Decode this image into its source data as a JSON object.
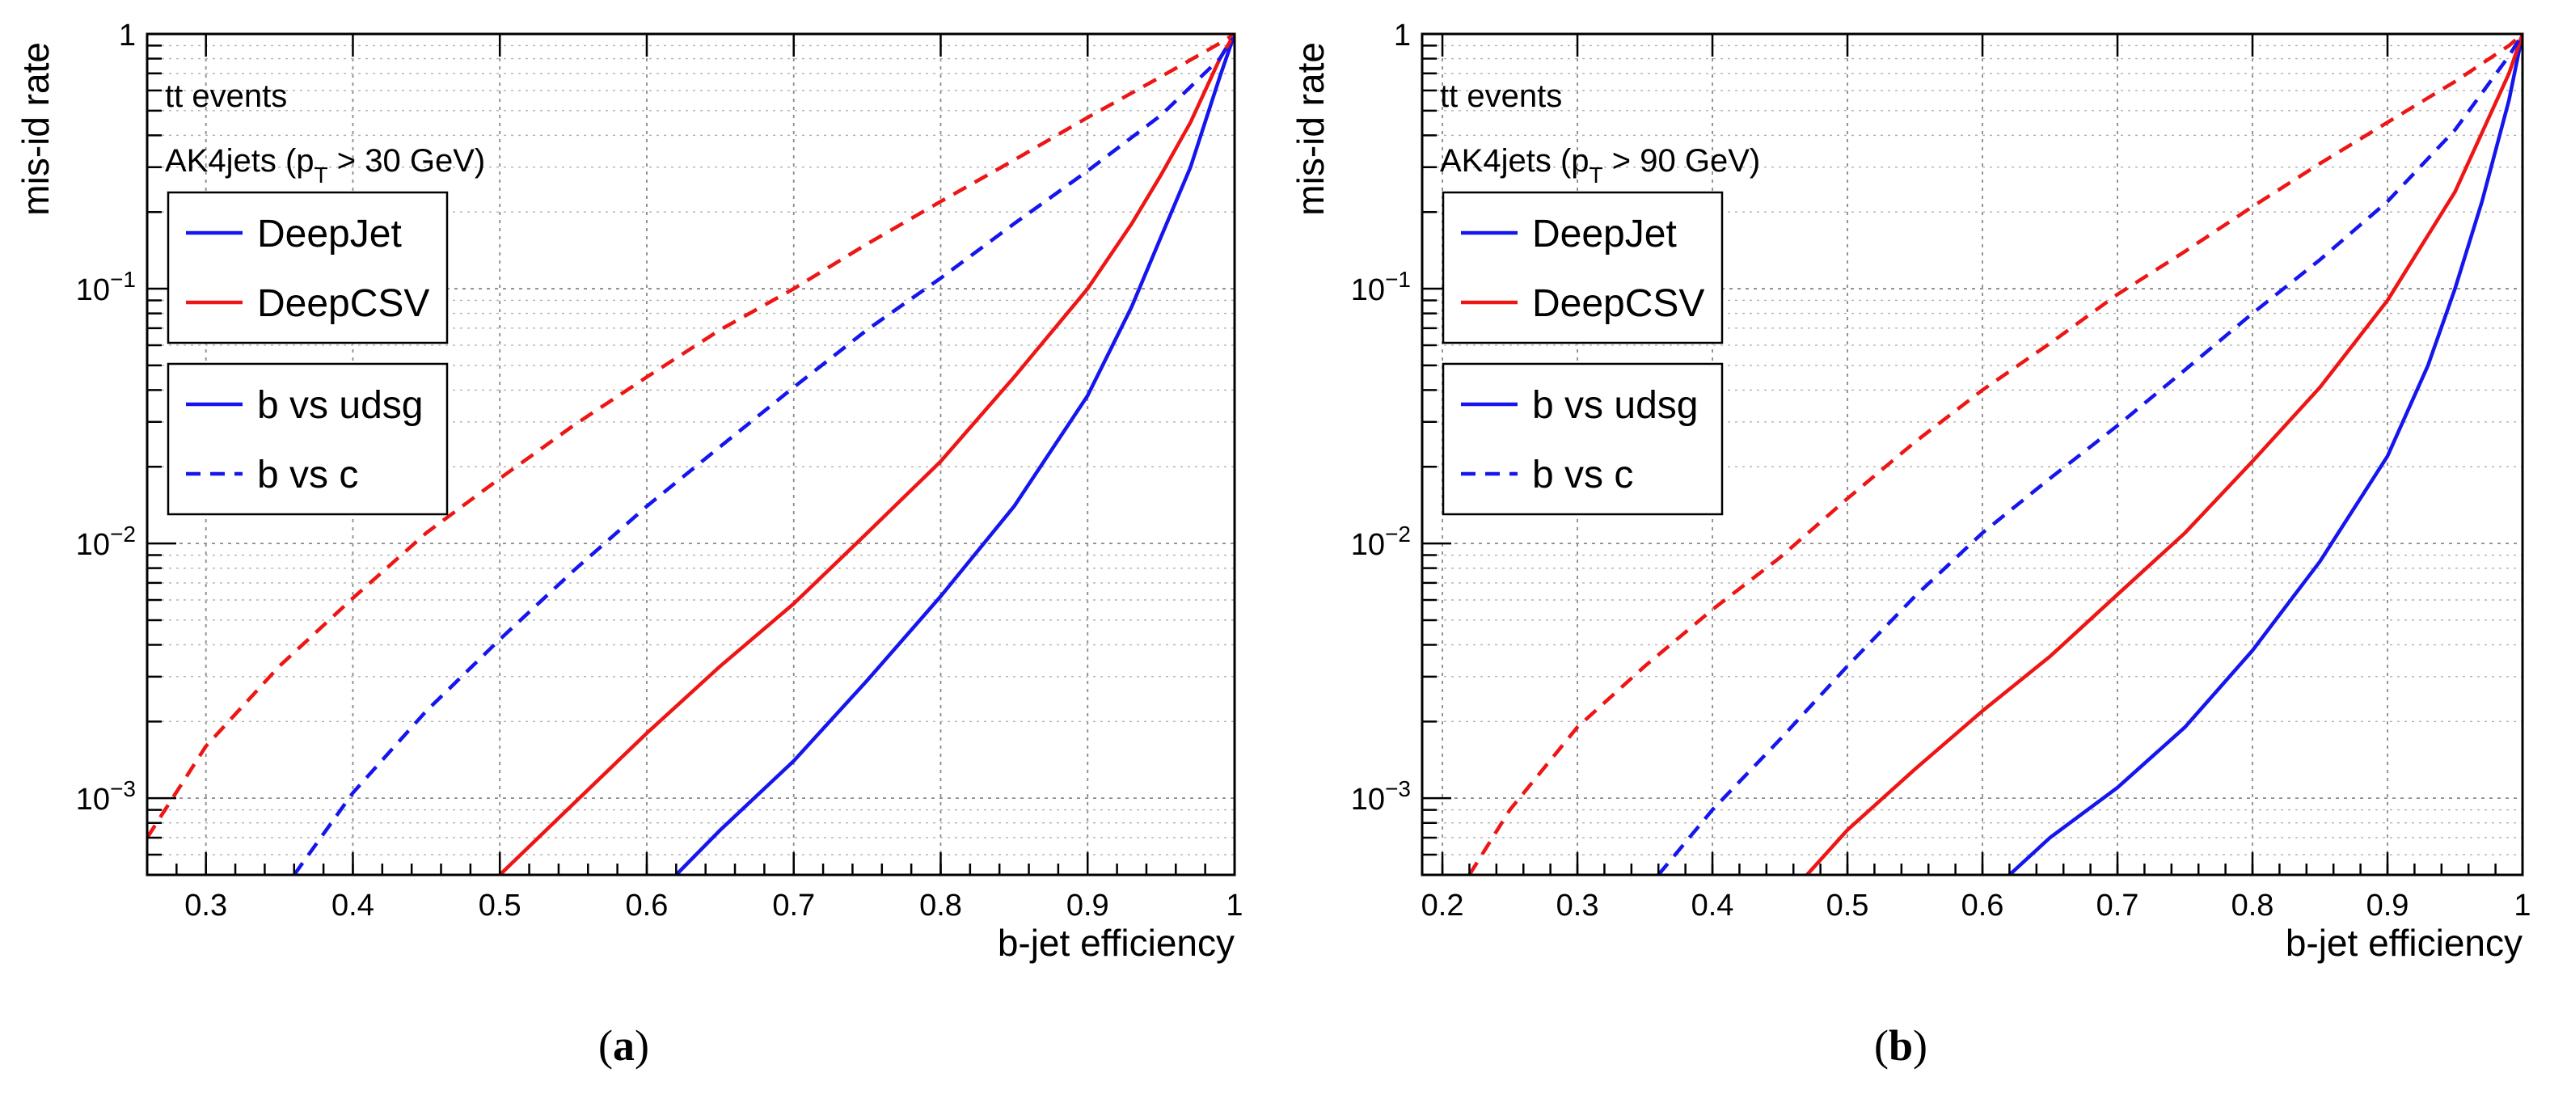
{
  "colors": {
    "deepjet": "#1515ee",
    "deepcsv": "#ee1515",
    "axis": "#000000"
  },
  "captions": {
    "a": {
      "open": "(",
      "letter": "a",
      "close": ")"
    },
    "b": {
      "open": "(",
      "letter": "b",
      "close": ")"
    }
  },
  "chart_data": [
    {
      "type": "line",
      "id": "a",
      "xlabel": "b-jet efficiency",
      "ylabel": "mis-id rate",
      "xscale": "linear",
      "yscale": "log",
      "xlim": [
        0.26,
        1.0
      ],
      "ylim": [
        0.0005,
        1.0
      ],
      "xticks": [
        {
          "v": 0.3,
          "label": "0.3"
        },
        {
          "v": 0.4,
          "label": "0.4"
        },
        {
          "v": 0.5,
          "label": "0.5"
        },
        {
          "v": 0.6,
          "label": "0.6"
        },
        {
          "v": 0.7,
          "label": "0.7"
        },
        {
          "v": 0.8,
          "label": "0.8"
        },
        {
          "v": 0.9,
          "label": "0.9"
        },
        {
          "v": 1.0,
          "label": "1"
        }
      ],
      "yticks": [
        {
          "v": 0.001,
          "base": "10",
          "exp": "−3"
        },
        {
          "v": 0.01,
          "base": "10",
          "exp": "−2"
        },
        {
          "v": 0.1,
          "base": "10",
          "exp": "−1"
        },
        {
          "v": 1,
          "base": "1",
          "exp": ""
        }
      ],
      "annotations": {
        "process": "tt events",
        "jets_prefix": "AK4jets (p",
        "jets_sub": "T",
        "jets_suffix": " > 30 GeV)"
      },
      "legend_taggers": [
        {
          "label": "DeepJet",
          "color": "#1515ee",
          "style": "solid"
        },
        {
          "label": "DeepCSV",
          "color": "#ee1515",
          "style": "solid"
        }
      ],
      "legend_styles": [
        {
          "label": "b vs udsg",
          "color": "#1515ee",
          "style": "solid"
        },
        {
          "label": "b vs c",
          "color": "#1515ee",
          "style": "dashed"
        }
      ],
      "series": [
        {
          "name": "DeepJet b vs udsg",
          "color": "#1515ee",
          "style": "solid",
          "x": [
            0.62,
            0.65,
            0.7,
            0.75,
            0.8,
            0.85,
            0.9,
            0.93,
            0.95,
            0.97,
            0.99,
            1.0
          ],
          "y": [
            0.0005,
            0.00075,
            0.0014,
            0.0029,
            0.0062,
            0.014,
            0.038,
            0.085,
            0.16,
            0.3,
            0.68,
            1.0
          ]
        },
        {
          "name": "DeepCSV b vs udsg",
          "color": "#ee1515",
          "style": "solid",
          "x": [
            0.5,
            0.55,
            0.6,
            0.65,
            0.7,
            0.75,
            0.8,
            0.85,
            0.9,
            0.93,
            0.95,
            0.97,
            0.99,
            1.0
          ],
          "y": [
            0.0005,
            0.00095,
            0.0018,
            0.0033,
            0.0058,
            0.011,
            0.021,
            0.045,
            0.1,
            0.18,
            0.28,
            0.45,
            0.8,
            1.0
          ]
        },
        {
          "name": "DeepJet b vs c",
          "color": "#1515ee",
          "style": "dashed",
          "x": [
            0.36,
            0.4,
            0.45,
            0.5,
            0.55,
            0.6,
            0.65,
            0.7,
            0.75,
            0.8,
            0.85,
            0.9,
            0.95,
            0.99,
            1.0
          ],
          "y": [
            0.0005,
            0.00105,
            0.0022,
            0.0042,
            0.0078,
            0.014,
            0.024,
            0.041,
            0.069,
            0.11,
            0.18,
            0.29,
            0.48,
            0.8,
            1.0
          ]
        },
        {
          "name": "DeepCSV b vs c",
          "color": "#ee1515",
          "style": "dashed",
          "x": [
            0.26,
            0.3,
            0.35,
            0.4,
            0.45,
            0.5,
            0.55,
            0.6,
            0.65,
            0.7,
            0.75,
            0.8,
            0.85,
            0.9,
            0.95,
            0.99,
            1.0
          ],
          "y": [
            0.0007,
            0.0016,
            0.0033,
            0.0061,
            0.011,
            0.018,
            0.029,
            0.045,
            0.069,
            0.1,
            0.15,
            0.22,
            0.32,
            0.47,
            0.68,
            0.92,
            1.0
          ]
        }
      ]
    },
    {
      "type": "line",
      "id": "b",
      "xlabel": "b-jet efficiency",
      "ylabel": "mis-id rate",
      "xscale": "linear",
      "yscale": "log",
      "xlim": [
        0.185,
        1.0
      ],
      "ylim": [
        0.0005,
        1.0
      ],
      "xticks": [
        {
          "v": 0.2,
          "label": "0.2"
        },
        {
          "v": 0.3,
          "label": "0.3"
        },
        {
          "v": 0.4,
          "label": "0.4"
        },
        {
          "v": 0.5,
          "label": "0.5"
        },
        {
          "v": 0.6,
          "label": "0.6"
        },
        {
          "v": 0.7,
          "label": "0.7"
        },
        {
          "v": 0.8,
          "label": "0.8"
        },
        {
          "v": 0.9,
          "label": "0.9"
        },
        {
          "v": 1.0,
          "label": "1"
        }
      ],
      "yticks": [
        {
          "v": 0.001,
          "base": "10",
          "exp": "−3"
        },
        {
          "v": 0.01,
          "base": "10",
          "exp": "−2"
        },
        {
          "v": 0.1,
          "base": "10",
          "exp": "−1"
        },
        {
          "v": 1,
          "base": "1",
          "exp": ""
        }
      ],
      "annotations": {
        "process": "tt events",
        "jets_prefix": "AK4jets (p",
        "jets_sub": "T",
        "jets_suffix": " > 90 GeV)"
      },
      "legend_taggers": [
        {
          "label": "DeepJet",
          "color": "#1515ee",
          "style": "solid"
        },
        {
          "label": "DeepCSV",
          "color": "#ee1515",
          "style": "solid"
        }
      ],
      "legend_styles": [
        {
          "label": "b vs udsg",
          "color": "#1515ee",
          "style": "solid"
        },
        {
          "label": "b vs c",
          "color": "#1515ee",
          "style": "dashed"
        }
      ],
      "series": [
        {
          "name": "DeepJet b vs udsg",
          "color": "#1515ee",
          "style": "solid",
          "x": [
            0.62,
            0.65,
            0.7,
            0.75,
            0.8,
            0.85,
            0.9,
            0.93,
            0.95,
            0.97,
            0.99,
            1.0
          ],
          "y": [
            0.0005,
            0.0007,
            0.0011,
            0.0019,
            0.0038,
            0.0085,
            0.022,
            0.05,
            0.1,
            0.22,
            0.55,
            1.0
          ]
        },
        {
          "name": "DeepCSV b vs udsg",
          "color": "#ee1515",
          "style": "solid",
          "x": [
            0.47,
            0.5,
            0.55,
            0.6,
            0.65,
            0.7,
            0.75,
            0.8,
            0.85,
            0.9,
            0.95,
            0.99,
            1.0
          ],
          "y": [
            0.0005,
            0.00075,
            0.0013,
            0.0022,
            0.0036,
            0.0063,
            0.011,
            0.021,
            0.041,
            0.09,
            0.24,
            0.7,
            1.0
          ]
        },
        {
          "name": "DeepJet b vs c",
          "color": "#1515ee",
          "style": "dashed",
          "x": [
            0.36,
            0.4,
            0.45,
            0.5,
            0.55,
            0.6,
            0.65,
            0.7,
            0.75,
            0.8,
            0.85,
            0.9,
            0.95,
            0.99,
            1.0
          ],
          "y": [
            0.0005,
            0.0009,
            0.0017,
            0.0033,
            0.0062,
            0.011,
            0.018,
            0.029,
            0.048,
            0.08,
            0.13,
            0.22,
            0.42,
            0.82,
            1.0
          ]
        },
        {
          "name": "DeepCSV b vs c",
          "color": "#ee1515",
          "style": "dashed",
          "x": [
            0.22,
            0.25,
            0.3,
            0.35,
            0.4,
            0.45,
            0.5,
            0.55,
            0.6,
            0.65,
            0.7,
            0.75,
            0.8,
            0.85,
            0.9,
            0.95,
            0.99,
            1.0
          ],
          "y": [
            0.0005,
            0.0009,
            0.0019,
            0.0033,
            0.0055,
            0.0088,
            0.015,
            0.025,
            0.04,
            0.061,
            0.095,
            0.14,
            0.21,
            0.31,
            0.45,
            0.65,
            0.9,
            1.0
          ]
        }
      ]
    }
  ]
}
